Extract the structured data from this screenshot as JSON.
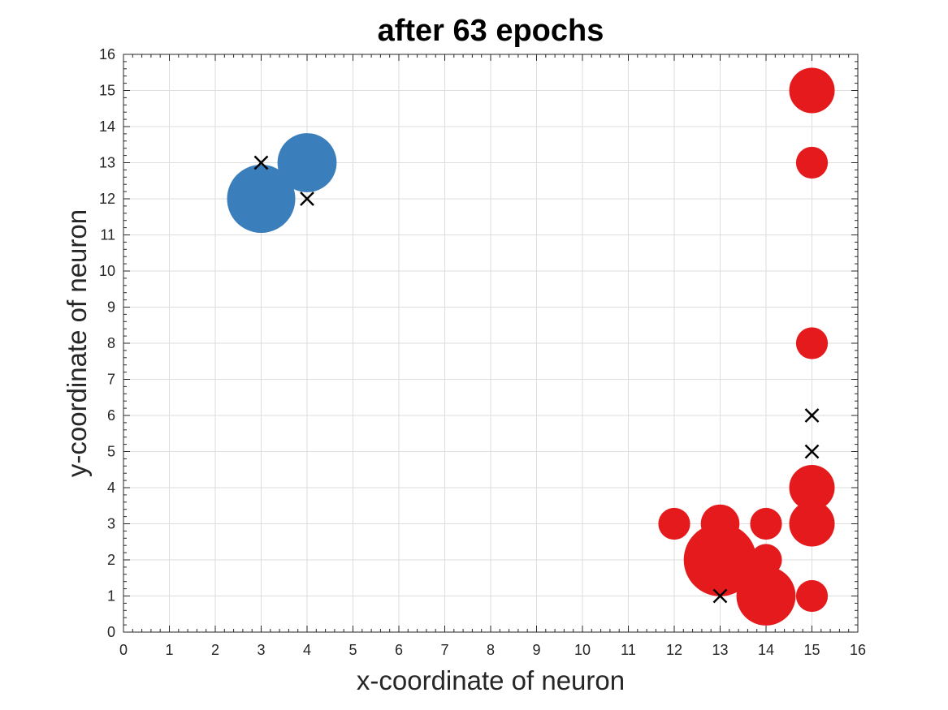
{
  "chart_data": {
    "type": "scatter",
    "title": "after 63 epochs",
    "xlabel": "x-coordinate of neuron",
    "ylabel": "y-coordinate of neuron",
    "xlim": [
      0,
      16
    ],
    "ylim": [
      0,
      16
    ],
    "xticks": [
      "0",
      "1",
      "2",
      "3",
      "4",
      "5",
      "6",
      "7",
      "8",
      "9",
      "10",
      "11",
      "12",
      "13",
      "14",
      "15",
      "16"
    ],
    "yticks": [
      "0",
      "1",
      "2",
      "3",
      "4",
      "5",
      "6",
      "7",
      "8",
      "9",
      "10",
      "11",
      "12",
      "13",
      "14",
      "15",
      "16"
    ],
    "grid": true,
    "colors": {
      "blue": "#3A7EBC",
      "red": "#E41A1C",
      "marker_x": "#000000"
    },
    "series": [
      {
        "color": "#3A7EBC",
        "marker": "circle",
        "points": [
          {
            "x": 3,
            "y": 12,
            "size": 3
          },
          {
            "x": 4,
            "y": 13,
            "size": 2.6
          }
        ]
      },
      {
        "color": "#E41A1C",
        "marker": "circle",
        "points": [
          {
            "x": 15,
            "y": 15,
            "size": 2
          },
          {
            "x": 15,
            "y": 13,
            "size": 1.4
          },
          {
            "x": 15,
            "y": 8,
            "size": 1.4
          },
          {
            "x": 15,
            "y": 4,
            "size": 2
          },
          {
            "x": 15,
            "y": 3,
            "size": 2
          },
          {
            "x": 15,
            "y": 1,
            "size": 1.4
          },
          {
            "x": 12,
            "y": 3,
            "size": 1.4
          },
          {
            "x": 13,
            "y": 3,
            "size": 1.7
          },
          {
            "x": 13,
            "y": 2,
            "size": 3.2
          },
          {
            "x": 14,
            "y": 3,
            "size": 1.4
          },
          {
            "x": 14,
            "y": 2,
            "size": 1.4
          },
          {
            "x": 14,
            "y": 1,
            "size": 2.6
          }
        ]
      },
      {
        "color": "#000000",
        "marker": "x",
        "points": [
          {
            "x": 3,
            "y": 13
          },
          {
            "x": 4,
            "y": 12
          },
          {
            "x": 15,
            "y": 6
          },
          {
            "x": 15,
            "y": 5
          },
          {
            "x": 13,
            "y": 1
          }
        ]
      }
    ]
  }
}
